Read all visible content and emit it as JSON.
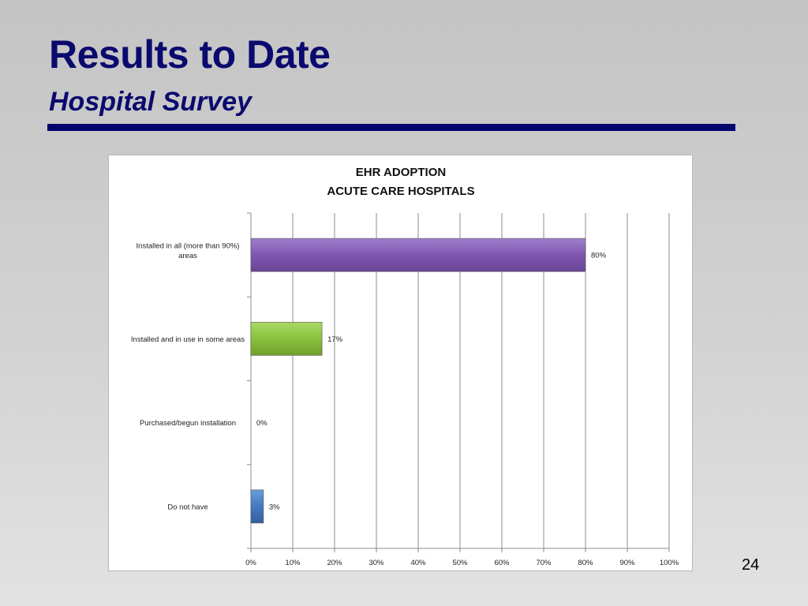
{
  "slide": {
    "title": "Results to Date",
    "subtitle": "Hospital Survey",
    "page_number": "24"
  },
  "chart_data": {
    "type": "bar",
    "orientation": "horizontal",
    "title": "EHR ADOPTION",
    "subtitle": "ACUTE CARE HOSPITALS",
    "categories": [
      "Installed in all (more than 90%) areas",
      "Installed and in use in some areas",
      "Purchased/begun installation",
      "Do not have"
    ],
    "category_lines": [
      [
        "Installed in all (more than 90%)",
        "areas"
      ],
      [
        "Installed and in use in some areas"
      ],
      [
        "Purchased/begun installation"
      ],
      [
        "Do not have"
      ]
    ],
    "values": [
      80,
      17,
      0,
      3
    ],
    "data_labels": [
      "80%",
      "17%",
      "0%",
      "3%"
    ],
    "colors": [
      "#8a63b8",
      "#92c948",
      "#8a63b8",
      "#4a82c8"
    ],
    "xlim": [
      0,
      100
    ],
    "xticks": [
      0,
      10,
      20,
      30,
      40,
      50,
      60,
      70,
      80,
      90,
      100
    ],
    "xtick_labels": [
      "0%",
      "10%",
      "20%",
      "30%",
      "40%",
      "50%",
      "60%",
      "70%",
      "80%",
      "90%",
      "100%"
    ],
    "grid": true,
    "legend": "none"
  }
}
